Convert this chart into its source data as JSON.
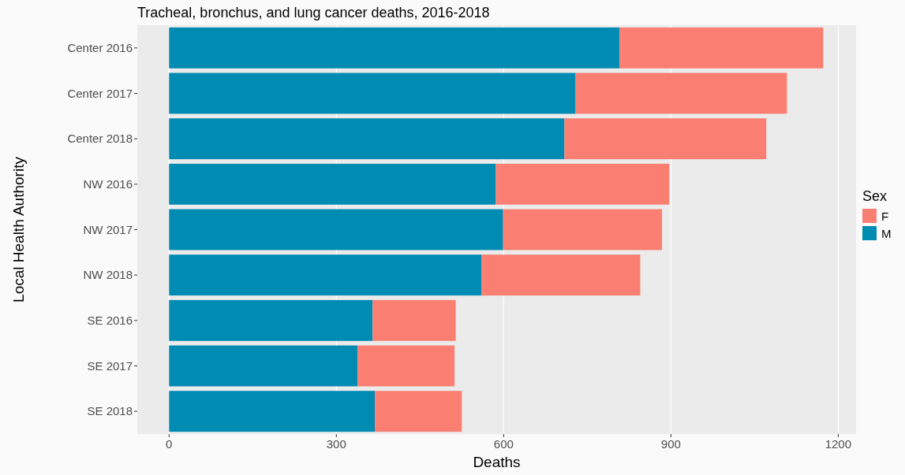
{
  "chart_data": {
    "type": "bar",
    "orientation": "horizontal",
    "stacked": true,
    "title": "Tracheal, bronchus, and lung cancer deaths, 2016-2018",
    "xlabel": "Deaths",
    "ylabel": "Local Health Authority",
    "legend_title": "Sex",
    "categories": [
      "Center 2016",
      "Center 2017",
      "Center 2018",
      "NW 2016",
      "NW 2017",
      "NW 2018",
      "SE 2016",
      "SE 2017",
      "SE 2018"
    ],
    "series": [
      {
        "name": "M",
        "color": "#008bb3",
        "values": [
          808,
          729,
          709,
          586,
          599,
          560,
          365,
          338,
          369
        ]
      },
      {
        "name": "F",
        "color": "#fa7f72",
        "values": [
          365,
          379,
          362,
          311,
          285,
          285,
          149,
          174,
          156
        ]
      }
    ],
    "xlim": [
      -57,
      1232
    ],
    "xticks": [
      0,
      300,
      600,
      900,
      1200
    ],
    "grid": "x",
    "legend": "right"
  }
}
